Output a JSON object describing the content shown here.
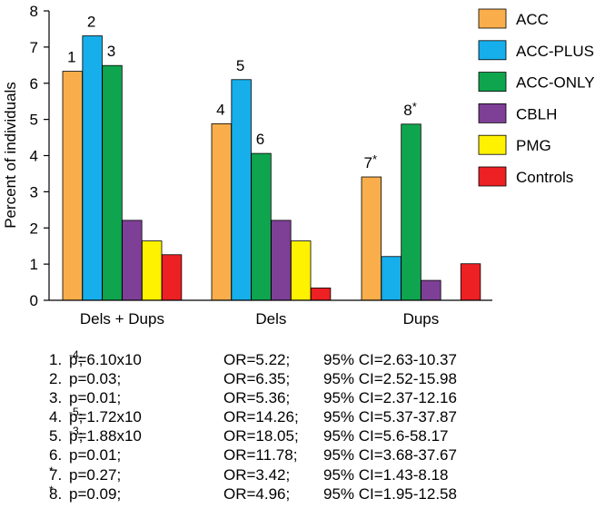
{
  "chart_data": {
    "type": "bar",
    "title": "",
    "xlabel": "",
    "ylabel": "Percent of individuals",
    "ylim": [
      0,
      8
    ],
    "yticks": [
      "0",
      "1",
      "2",
      "3",
      "4",
      "5",
      "6",
      "7",
      "8"
    ],
    "grid": false,
    "legend_position": "top-right",
    "categories": [
      "Dels + Dups",
      "Dels",
      "Dups"
    ],
    "series": [
      {
        "name": "ACC",
        "color": "#F9AE4B",
        "values": [
          6.33,
          4.88,
          3.41
        ]
      },
      {
        "name": "ACC-PLUS",
        "color": "#16AEEB",
        "values": [
          7.31,
          6.1,
          1.21
        ]
      },
      {
        "name": "ACC-ONLY",
        "color": "#0FA54E",
        "values": [
          6.49,
          4.06,
          4.87
        ]
      },
      {
        "name": "CBLH",
        "color": "#7E3F97",
        "values": [
          2.21,
          2.21,
          0.55
        ]
      },
      {
        "name": "PMG",
        "color": "#FFF200",
        "values": [
          1.64,
          1.64,
          null
        ]
      },
      {
        "name": "Controls",
        "color": "#ED2024",
        "values": [
          1.26,
          0.34,
          1.01
        ]
      }
    ],
    "annotations": [
      {
        "label": "1",
        "category": "Dels + Dups",
        "series": "ACC"
      },
      {
        "label": "2",
        "category": "Dels + Dups",
        "series": "ACC-PLUS"
      },
      {
        "label": "3",
        "category": "Dels + Dups",
        "series": "ACC-ONLY"
      },
      {
        "label": "4",
        "category": "Dels",
        "series": "ACC"
      },
      {
        "label": "5",
        "category": "Dels",
        "series": "ACC-PLUS"
      },
      {
        "label": "6",
        "category": "Dels",
        "series": "ACC-ONLY"
      },
      {
        "label": "7",
        "star": "*",
        "category": "Dups",
        "series": "ACC"
      },
      {
        "label": "8",
        "star": "*",
        "category": "Dups",
        "series": "ACC-ONLY"
      }
    ]
  },
  "stats": [
    {
      "num": "1.",
      "star": "",
      "p": "p=6.10x10",
      "p_exp": "-4",
      "p_end": ";",
      "or": "OR=5.22;",
      "ci": "95% CI=2.63-10.37"
    },
    {
      "num": "2.",
      "star": "",
      "p": "p=0.03;",
      "p_exp": "",
      "p_end": "",
      "or": "OR=6.35;",
      "ci": "95% CI=2.52-15.98"
    },
    {
      "num": "3.",
      "star": "",
      "p": "p=0.01;",
      "p_exp": "",
      "p_end": "",
      "or": "OR=5.36;",
      "ci": "95% CI=2.37-12.16"
    },
    {
      "num": "4.",
      "star": "",
      "p": "p=1.72x10",
      "p_exp": "-5",
      "p_end": ";",
      "or": "OR=14.26;",
      "ci": "95% CI=5.37-37.87"
    },
    {
      "num": "5.",
      "star": "",
      "p": "p=1.88x10",
      "p_exp": "-3",
      "p_end": ";",
      "or": "OR=18.05;",
      "ci": "95% CI=5.6-58.17"
    },
    {
      "num": "6.",
      "star": "",
      "p": "p=0.01;",
      "p_exp": "",
      "p_end": "",
      "or": "OR=11.78;",
      "ci": "95% CI=3.68-37.67"
    },
    {
      "num": "7.",
      "star": "*",
      "p": "p=0.27;",
      "p_exp": "",
      "p_end": "",
      "or": "OR=3.42;",
      "ci": "95% CI=1.43-8.18"
    },
    {
      "num": "8.",
      "star": "*",
      "p": "p=0.09;",
      "p_exp": "",
      "p_end": "",
      "or": "OR=4.96;",
      "ci": "95% CI=1.95-12.58"
    }
  ]
}
